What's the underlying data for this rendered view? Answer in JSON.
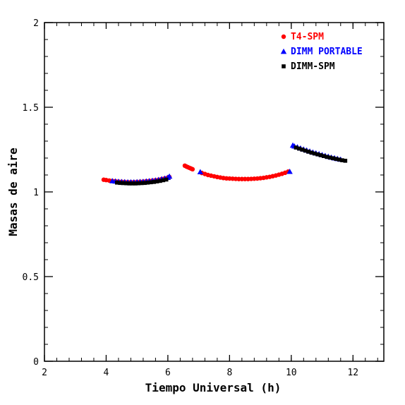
{
  "chart_data": {
    "type": "scatter",
    "title": "",
    "xlabel": "Tiempo Universal (h)",
    "ylabel": "Masas de aire",
    "xlim": [
      2,
      13
    ],
    "ylim": [
      0,
      2
    ],
    "x_ticks": [
      2,
      4,
      6,
      8,
      10,
      12
    ],
    "x_tick_labels": [
      "2",
      "4",
      "6",
      "8",
      "10",
      "12"
    ],
    "y_ticks": [
      0,
      0.5,
      1,
      1.5,
      2
    ],
    "y_tick_labels": [
      "0",
      "0.5",
      "1",
      "1.5",
      "2"
    ],
    "x_minor_step": 0.4,
    "y_minor_step": 0.1,
    "grid": false,
    "legend_position": "top-right",
    "series": [
      {
        "name": "T4-SPM",
        "marker": "circle",
        "color": "#ff0000",
        "x": [
          3.92,
          4.0,
          4.1,
          4.2,
          4.3,
          4.4,
          4.5,
          4.6,
          4.7,
          4.8,
          4.9,
          5.0,
          5.1,
          5.2,
          5.3,
          5.4,
          5.5,
          5.6,
          5.7,
          5.8,
          5.9,
          6.0,
          6.05,
          6.55,
          6.6,
          6.65,
          6.7,
          6.75,
          6.8,
          7.1,
          7.2,
          7.3,
          7.4,
          7.5,
          7.6,
          7.7,
          7.8,
          7.9,
          8.0,
          8.1,
          8.2,
          8.3,
          8.4,
          8.5,
          8.6,
          8.7,
          8.8,
          8.9,
          9.0,
          9.1,
          9.2,
          9.3,
          9.4,
          9.5,
          9.6,
          9.7,
          9.8,
          9.9
        ],
        "y": [
          1.072,
          1.07,
          1.067,
          1.065,
          1.063,
          1.061,
          1.06,
          1.059,
          1.058,
          1.058,
          1.058,
          1.059,
          1.06,
          1.061,
          1.063,
          1.065,
          1.067,
          1.069,
          1.072,
          1.076,
          1.08,
          1.085,
          1.088,
          1.155,
          1.15,
          1.146,
          1.142,
          1.138,
          1.134,
          1.112,
          1.106,
          1.1,
          1.096,
          1.092,
          1.088,
          1.085,
          1.082,
          1.08,
          1.079,
          1.078,
          1.077,
          1.076,
          1.076,
          1.076,
          1.076,
          1.077,
          1.078,
          1.079,
          1.081,
          1.083,
          1.086,
          1.089,
          1.093,
          1.097,
          1.102,
          1.107,
          1.113,
          1.12
        ]
      },
      {
        "name": "DIMM PORTABLE",
        "marker": "triangle",
        "color": "#0000ff",
        "x": [
          4.2,
          4.3,
          4.4,
          4.5,
          4.6,
          4.7,
          4.8,
          4.9,
          5.0,
          5.1,
          5.2,
          5.3,
          5.4,
          5.5,
          5.6,
          5.7,
          5.8,
          5.9,
          6.0,
          6.05,
          7.05,
          9.95,
          10.05,
          10.1,
          10.2,
          10.3,
          10.4,
          10.5,
          10.6,
          10.7,
          10.8,
          10.9,
          11.0,
          11.1,
          11.2,
          11.3,
          11.4,
          11.5,
          11.6
        ],
        "y": [
          1.065,
          1.063,
          1.061,
          1.06,
          1.059,
          1.058,
          1.058,
          1.058,
          1.059,
          1.06,
          1.061,
          1.063,
          1.065,
          1.067,
          1.069,
          1.072,
          1.076,
          1.08,
          1.085,
          1.092,
          1.118,
          1.12,
          1.275,
          1.27,
          1.265,
          1.258,
          1.252,
          1.246,
          1.24,
          1.234,
          1.229,
          1.224,
          1.219,
          1.214,
          1.209,
          1.204,
          1.2,
          1.196,
          1.192
        ]
      },
      {
        "name": "DIMM-SPM",
        "marker": "square",
        "color": "#000000",
        "x": [
          4.35,
          4.45,
          4.55,
          4.65,
          4.75,
          4.85,
          4.95,
          5.05,
          5.15,
          5.25,
          5.35,
          5.45,
          5.55,
          5.65,
          5.75,
          5.85,
          5.95,
          10.15,
          10.25,
          10.35,
          10.45,
          10.55,
          10.65,
          10.75,
          10.85,
          10.95,
          11.05,
          11.15,
          11.25,
          11.35,
          11.45,
          11.55,
          11.65,
          11.75
        ],
        "y": [
          1.055,
          1.053,
          1.052,
          1.051,
          1.05,
          1.05,
          1.05,
          1.051,
          1.052,
          1.053,
          1.055,
          1.057,
          1.059,
          1.062,
          1.065,
          1.069,
          1.073,
          1.262,
          1.256,
          1.25,
          1.244,
          1.238,
          1.232,
          1.227,
          1.222,
          1.217,
          1.212,
          1.207,
          1.203,
          1.199,
          1.195,
          1.191,
          1.187,
          1.184
        ]
      }
    ]
  }
}
